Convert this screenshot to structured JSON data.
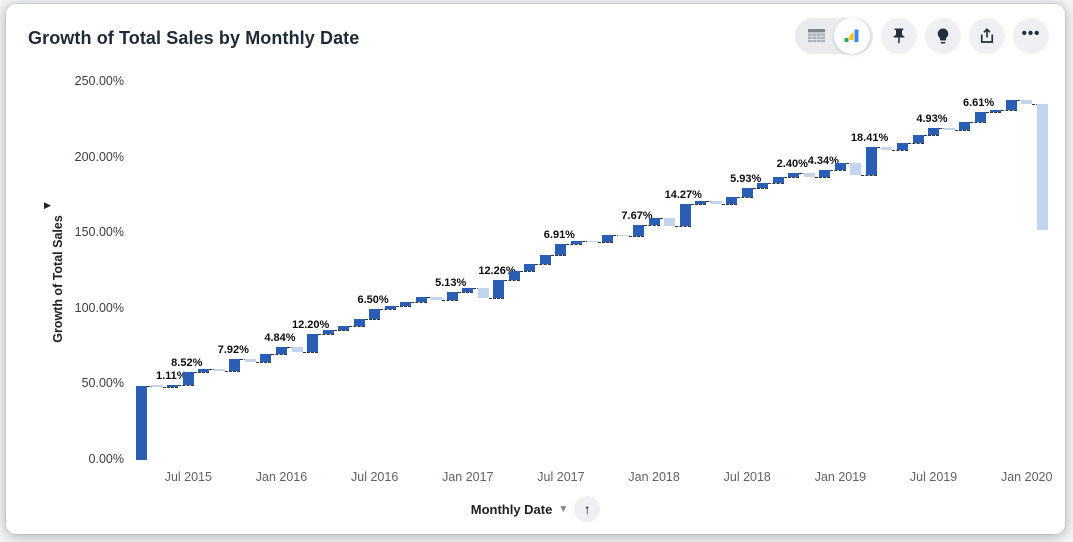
{
  "card": {
    "title": "Growth of Total Sales by Monthly Date"
  },
  "toolbar": {
    "view_toggle": {
      "table_icon": "table-grid-icon",
      "chart_icon": "chart-colored-icon",
      "selected": "chart"
    },
    "buttons": [
      {
        "name": "pin-button",
        "icon": "pushpin-icon"
      },
      {
        "name": "insights-button",
        "icon": "lightbulb-icon"
      },
      {
        "name": "share-button",
        "icon": "share-upload-icon"
      },
      {
        "name": "more-button",
        "icon": "ellipsis-icon",
        "glyph": "•••"
      }
    ]
  },
  "axes": {
    "y_title": "Growth of Total Sales",
    "y_collapse_glyph": "▶",
    "x_title": "Monthly Date",
    "x_caret_glyph": "▼",
    "x_sort_glyph": "↑"
  },
  "chart_data": {
    "type": "waterfall",
    "title": "Growth of Total Sales by Monthly Date",
    "xlabel": "Monthly Date",
    "ylabel": "Growth of Total Sales",
    "ylim": [
      0,
      250
    ],
    "grid": false,
    "legend": false,
    "colors": {
      "increase": "#2a5db4",
      "decrease": "#c3d5ee",
      "connector": "#33383d"
    },
    "y_ticks": [
      {
        "value": 0,
        "label": "0.00%"
      },
      {
        "value": 50,
        "label": "50.00%"
      },
      {
        "value": 100,
        "label": "100.00%"
      },
      {
        "value": 150,
        "label": "150.00%"
      },
      {
        "value": 200,
        "label": "200.00%"
      },
      {
        "value": 250,
        "label": "250.00%"
      }
    ],
    "x_ticks": [
      {
        "index": 3,
        "label": "Jul 2015"
      },
      {
        "index": 9,
        "label": "Jan 2016"
      },
      {
        "index": 15,
        "label": "Jul 2016"
      },
      {
        "index": 21,
        "label": "Jan 2017"
      },
      {
        "index": 27,
        "label": "Jul 2017"
      },
      {
        "index": 33,
        "label": "Jan 2018"
      },
      {
        "index": 39,
        "label": "Jul 2018"
      },
      {
        "index": 45,
        "label": "Jan 2019"
      },
      {
        "index": 51,
        "label": "Jul 2019"
      },
      {
        "index": 57,
        "label": "Jan 2020"
      }
    ],
    "points": [
      {
        "month": "Apr 2015",
        "delta": 48.86
      },
      {
        "month": "May 2015",
        "delta": -0.52
      },
      {
        "month": "Jun 2015",
        "delta": 1.11,
        "label": "1.11%"
      },
      {
        "month": "Jul 2015",
        "delta": 8.52,
        "label": "8.52%"
      },
      {
        "month": "Aug 2015",
        "delta": 2.1
      },
      {
        "month": "Sep 2015",
        "delta": -1.3
      },
      {
        "month": "Oct 2015",
        "delta": 7.92,
        "label": "7.92%"
      },
      {
        "month": "Nov 2015",
        "delta": -2.1
      },
      {
        "month": "Dec 2015",
        "delta": 5.4
      },
      {
        "month": "Jan 2016",
        "delta": 4.84,
        "label": "4.84%"
      },
      {
        "month": "Feb 2016",
        "delta": -3.6
      },
      {
        "month": "Mar 2016",
        "delta": 12.2,
        "label": "12.20%"
      },
      {
        "month": "Apr 2016",
        "delta": 2.3
      },
      {
        "month": "May 2016",
        "delta": 3.1
      },
      {
        "month": "Jun 2016",
        "delta": 4.7
      },
      {
        "month": "Jul 2016",
        "delta": 6.5,
        "label": "6.50%"
      },
      {
        "month": "Aug 2016",
        "delta": 1.8
      },
      {
        "month": "Sep 2016",
        "delta": 2.6
      },
      {
        "month": "Oct 2016",
        "delta": 3.2
      },
      {
        "month": "Nov 2016",
        "delta": -1.9
      },
      {
        "month": "Dec 2016",
        "delta": 5.13,
        "label": "5.13%"
      },
      {
        "month": "Jan 2017",
        "delta": 3.0
      },
      {
        "month": "Feb 2017",
        "delta": -6.8
      },
      {
        "month": "Mar 2017",
        "delta": 12.26,
        "label": "12.26%"
      },
      {
        "month": "Apr 2017",
        "delta": 5.9
      },
      {
        "month": "May 2017",
        "delta": 4.4
      },
      {
        "month": "Jun 2017",
        "delta": 6.1
      },
      {
        "month": "Jul 2017",
        "delta": 6.91,
        "label": "6.91%"
      },
      {
        "month": "Aug 2017",
        "delta": 2.5
      },
      {
        "month": "Sep 2017",
        "delta": -1.0
      },
      {
        "month": "Oct 2017",
        "delta": 5.0
      },
      {
        "month": "Nov 2017",
        "delta": -1.2
      },
      {
        "month": "Dec 2017",
        "delta": 7.67,
        "label": "7.67%"
      },
      {
        "month": "Jan 2018",
        "delta": 4.3
      },
      {
        "month": "Feb 2018",
        "delta": -5.0
      },
      {
        "month": "Mar 2018",
        "delta": 14.27,
        "label": "14.27%"
      },
      {
        "month": "Apr 2018",
        "delta": 2.4
      },
      {
        "month": "May 2018",
        "delta": -2.1
      },
      {
        "month": "Jun 2018",
        "delta": 4.7
      },
      {
        "month": "Jul 2018",
        "delta": 5.93,
        "label": "5.93%"
      },
      {
        "month": "Aug 2018",
        "delta": 3.3
      },
      {
        "month": "Sep 2018",
        "delta": 4.0
      },
      {
        "month": "Oct 2018",
        "delta": 2.4,
        "label": "2.40%"
      },
      {
        "month": "Nov 2018",
        "delta": -2.3
      },
      {
        "month": "Dec 2018",
        "delta": 4.34,
        "label": "4.34%"
      },
      {
        "month": "Jan 2019",
        "delta": 4.5
      },
      {
        "month": "Feb 2019",
        "delta": -7.9
      },
      {
        "month": "Mar 2019",
        "delta": 18.41,
        "label": "18.41%"
      },
      {
        "month": "Apr 2019",
        "delta": -1.5
      },
      {
        "month": "May 2019",
        "delta": 4.5
      },
      {
        "month": "Jun 2019",
        "delta": 4.9
      },
      {
        "month": "Jul 2019",
        "delta": 4.93,
        "label": "4.93%"
      },
      {
        "month": "Aug 2019",
        "delta": -1.4
      },
      {
        "month": "Sep 2019",
        "delta": 5.3
      },
      {
        "month": "Oct 2019",
        "delta": 6.61,
        "label": "6.61%"
      },
      {
        "month": "Nov 2019",
        "delta": 1.3
      },
      {
        "month": "Dec 2019",
        "delta": 6.3
      },
      {
        "month": "Jan 2020",
        "delta": -2.5
      },
      {
        "month": "Feb 2020",
        "delta": -83.0
      }
    ]
  }
}
